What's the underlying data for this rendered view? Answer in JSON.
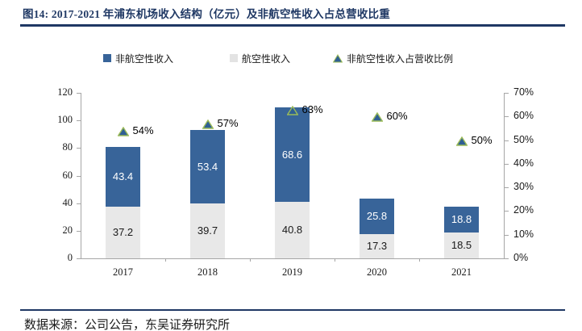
{
  "figure": {
    "title": "图14:  2017-2021 年浦东机场收入结构（亿元）及非航空性收入占总营收比重",
    "source": "数据来源：公司公告，东吴证券研究所"
  },
  "colors": {
    "accent_navy": "#1F3864",
    "bar_blue": "#386499",
    "bar_gray": "#E8E8E8",
    "legend_gray": "#E3E3E3",
    "marker_fill": "#2F5F94",
    "marker_stroke": "#9BBB59",
    "axis_line": "#A6A6A6",
    "label_on_blue": "#FFFFFF",
    "label_on_gray": "#1a1a1a"
  },
  "legend": [
    {
      "label": "非航空性收入",
      "swatch": "blue-square"
    },
    {
      "label": "航空性收入",
      "swatch": "gray-square"
    },
    {
      "label": "非航空性收入占营收比例",
      "swatch": "triangle"
    }
  ],
  "chart_data": {
    "type": "bar",
    "stacked": true,
    "title": "2017-2021 年浦东机场收入结构（亿元）及非航空性收入占总营收比重",
    "categories": [
      "2017",
      "2018",
      "2019",
      "2020",
      "2021"
    ],
    "series": [
      {
        "name": "航空性收入",
        "color": "gray",
        "values": [
          37.2,
          39.7,
          40.8,
          17.3,
          18.5
        ]
      },
      {
        "name": "非航空性收入",
        "color": "blue",
        "values": [
          43.4,
          53.4,
          68.6,
          25.8,
          18.8
        ]
      }
    ],
    "secondary_series": {
      "name": "非航空性收入占营收比例",
      "type": "scatter-triangle",
      "values_pct": [
        54,
        57,
        63,
        60,
        50
      ],
      "labels": [
        "54%",
        "57%",
        "63%",
        "60%",
        "50%"
      ]
    },
    "y_left": {
      "min": 0,
      "max": 120,
      "ticks": [
        "0",
        "20",
        "40",
        "60",
        "80",
        "100",
        "120"
      ]
    },
    "y_right": {
      "min": 0,
      "max": 70,
      "ticks": [
        "0%",
        "10%",
        "20%",
        "30%",
        "40%",
        "50%",
        "60%",
        "70%"
      ]
    },
    "legend_position": "top",
    "grid": false
  }
}
